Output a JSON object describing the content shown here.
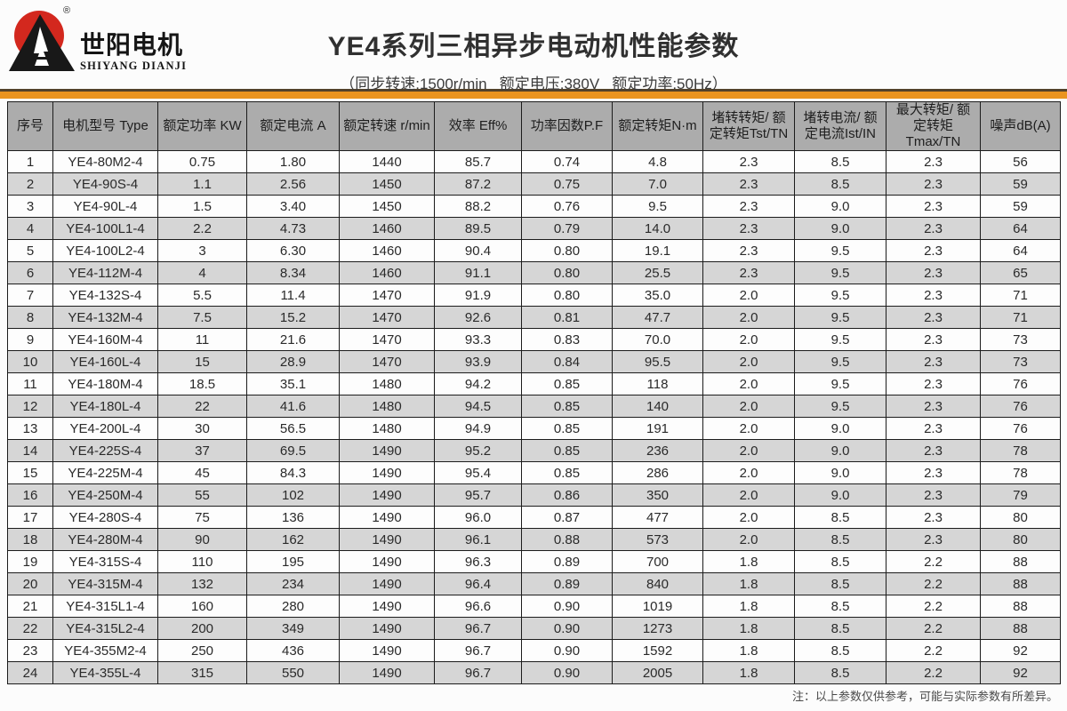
{
  "page": {
    "title": "YE4系列三相异步电动机性能参数",
    "subtitle": "（同步转速:1500r/min   额定电压:380V   额定功率:50Hz）",
    "note": "注：以上参数仅供参考，可能与实际参数有所差异。"
  },
  "logo": {
    "brand_cn": "世阳电机",
    "brand_en": "SHIYANG DIANJI",
    "registered_mark": "®",
    "sun_color": "#d3281e",
    "mountain_color": "#181818"
  },
  "colors": {
    "accent_orange": "#ea9420",
    "accent_dark_brown": "#53422b",
    "header_gray": "#acacac",
    "row_alt_gray": "#d6d6d6",
    "border_black": "#1c1c1c"
  },
  "table": {
    "headers": [
      "序号",
      "电机型号 Type",
      "额定功率 KW",
      "额定电流 A",
      "额定转速 r/min",
      "效率 Eff%",
      "功率因数P.F",
      "额定转矩N·m",
      "堵转转矩/ 额\n定转矩Tst/TN",
      "堵转电流/ 额\n定电流Ist/IN",
      "最大转矩/ 额\n定转矩Tmax/TN",
      "噪声dB(A)"
    ],
    "rows": [
      [
        "1",
        "YE4-80M2-4",
        "0.75",
        "1.80",
        "1440",
        "85.7",
        "0.74",
        "4.8",
        "2.3",
        "8.5",
        "2.3",
        "56"
      ],
      [
        "2",
        "YE4-90S-4",
        "1.1",
        "2.56",
        "1450",
        "87.2",
        "0.75",
        "7.0",
        "2.3",
        "8.5",
        "2.3",
        "59"
      ],
      [
        "3",
        "YE4-90L-4",
        "1.5",
        "3.40",
        "1450",
        "88.2",
        "0.76",
        "9.5",
        "2.3",
        "9.0",
        "2.3",
        "59"
      ],
      [
        "4",
        "YE4-100L1-4",
        "2.2",
        "4.73",
        "1460",
        "89.5",
        "0.79",
        "14.0",
        "2.3",
        "9.0",
        "2.3",
        "64"
      ],
      [
        "5",
        "YE4-100L2-4",
        "3",
        "6.30",
        "1460",
        "90.4",
        "0.80",
        "19.1",
        "2.3",
        "9.5",
        "2.3",
        "64"
      ],
      [
        "6",
        "YE4-112M-4",
        "4",
        "8.34",
        "1460",
        "91.1",
        "0.80",
        "25.5",
        "2.3",
        "9.5",
        "2.3",
        "65"
      ],
      [
        "7",
        "YE4-132S-4",
        "5.5",
        "11.4",
        "1470",
        "91.9",
        "0.80",
        "35.0",
        "2.0",
        "9.5",
        "2.3",
        "71"
      ],
      [
        "8",
        "YE4-132M-4",
        "7.5",
        "15.2",
        "1470",
        "92.6",
        "0.81",
        "47.7",
        "2.0",
        "9.5",
        "2.3",
        "71"
      ],
      [
        "9",
        "YE4-160M-4",
        "11",
        "21.6",
        "1470",
        "93.3",
        "0.83",
        "70.0",
        "2.0",
        "9.5",
        "2.3",
        "73"
      ],
      [
        "10",
        "YE4-160L-4",
        "15",
        "28.9",
        "1470",
        "93.9",
        "0.84",
        "95.5",
        "2.0",
        "9.5",
        "2.3",
        "73"
      ],
      [
        "11",
        "YE4-180M-4",
        "18.5",
        "35.1",
        "1480",
        "94.2",
        "0.85",
        "118",
        "2.0",
        "9.5",
        "2.3",
        "76"
      ],
      [
        "12",
        "YE4-180L-4",
        "22",
        "41.6",
        "1480",
        "94.5",
        "0.85",
        "140",
        "2.0",
        "9.5",
        "2.3",
        "76"
      ],
      [
        "13",
        "YE4-200L-4",
        "30",
        "56.5",
        "1480",
        "94.9",
        "0.85",
        "191",
        "2.0",
        "9.0",
        "2.3",
        "76"
      ],
      [
        "14",
        "YE4-225S-4",
        "37",
        "69.5",
        "1490",
        "95.2",
        "0.85",
        "236",
        "2.0",
        "9.0",
        "2.3",
        "78"
      ],
      [
        "15",
        "YE4-225M-4",
        "45",
        "84.3",
        "1490",
        "95.4",
        "0.85",
        "286",
        "2.0",
        "9.0",
        "2.3",
        "78"
      ],
      [
        "16",
        "YE4-250M-4",
        "55",
        "102",
        "1490",
        "95.7",
        "0.86",
        "350",
        "2.0",
        "9.0",
        "2.3",
        "79"
      ],
      [
        "17",
        "YE4-280S-4",
        "75",
        "136",
        "1490",
        "96.0",
        "0.87",
        "477",
        "2.0",
        "8.5",
        "2.3",
        "80"
      ],
      [
        "18",
        "YE4-280M-4",
        "90",
        "162",
        "1490",
        "96.1",
        "0.88",
        "573",
        "2.0",
        "8.5",
        "2.3",
        "80"
      ],
      [
        "19",
        "YE4-315S-4",
        "110",
        "195",
        "1490",
        "96.3",
        "0.89",
        "700",
        "1.8",
        "8.5",
        "2.2",
        "88"
      ],
      [
        "20",
        "YE4-315M-4",
        "132",
        "234",
        "1490",
        "96.4",
        "0.89",
        "840",
        "1.8",
        "8.5",
        "2.2",
        "88"
      ],
      [
        "21",
        "YE4-315L1-4",
        "160",
        "280",
        "1490",
        "96.6",
        "0.90",
        "1019",
        "1.8",
        "8.5",
        "2.2",
        "88"
      ],
      [
        "22",
        "YE4-315L2-4",
        "200",
        "349",
        "1490",
        "96.7",
        "0.90",
        "1273",
        "1.8",
        "8.5",
        "2.2",
        "88"
      ],
      [
        "23",
        "YE4-355M2-4",
        "250",
        "436",
        "1490",
        "96.7",
        "0.90",
        "1592",
        "1.8",
        "8.5",
        "2.2",
        "92"
      ],
      [
        "24",
        "YE4-355L-4",
        "315",
        "550",
        "1490",
        "96.7",
        "0.90",
        "2005",
        "1.8",
        "8.5",
        "2.2",
        "92"
      ]
    ]
  }
}
